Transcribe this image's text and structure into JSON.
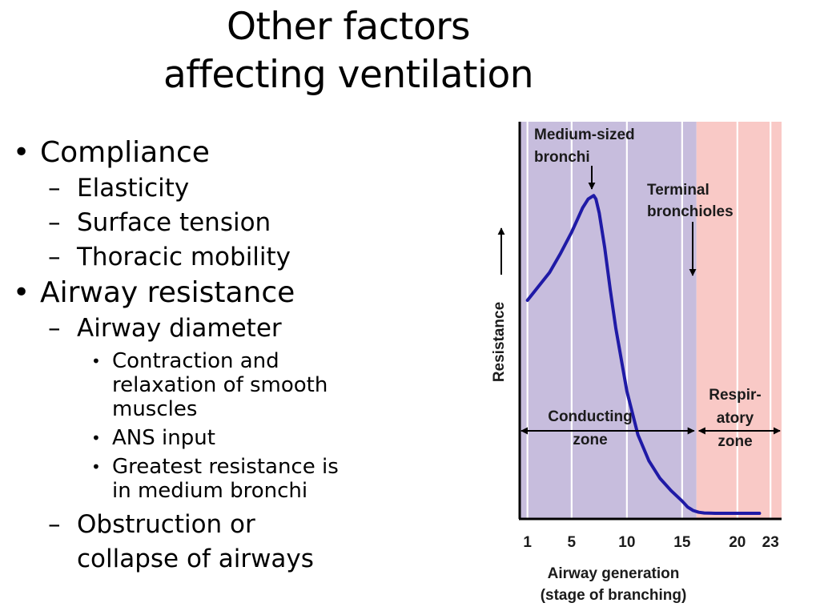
{
  "slide": {
    "title_line1": "Other factors",
    "title_line2": "affecting ventilation"
  },
  "bullets": {
    "compliance": {
      "label": "Compliance",
      "items": [
        "Elasticity",
        "Surface tension",
        "Thoracic mobility"
      ]
    },
    "airway_resistance": {
      "label": "Airway resistance",
      "diameter": {
        "label": "Airway diameter",
        "items": [
          [
            "Contraction and",
            "relaxation of smooth",
            "muscles"
          ],
          [
            "ANS input"
          ],
          [
            "Greatest resistance is",
            "in medium bronchi"
          ]
        ]
      },
      "obstruction": [
        "Obstruction or",
        "collapse of airways"
      ]
    }
  },
  "colors": {
    "conducting_zone": "#c7bddd",
    "respiratory_zone": "#f9c9c6",
    "curve": "#1f1aa6",
    "grid": "#ffffff",
    "axis": "#000000"
  },
  "chart_data": {
    "type": "line",
    "xlabel_line1": "Airway generation",
    "xlabel_line2": "(stage of branching)",
    "ylabel": "Resistance",
    "x_ticks": [
      1,
      5,
      10,
      15,
      20,
      23
    ],
    "xlim": [
      0.3,
      24
    ],
    "ylim": [
      0,
      1
    ],
    "grid": true,
    "series": [
      {
        "x": [
          1,
          2,
          3,
          4,
          5,
          5.5,
          6,
          6.5,
          7,
          7.2,
          7.5,
          8,
          8.5,
          9,
          10,
          11,
          12,
          13,
          14,
          15,
          15.5,
          16,
          16.5,
          17,
          18,
          20,
          22
        ],
        "y": [
          0.61,
          0.65,
          0.69,
          0.745,
          0.805,
          0.84,
          0.875,
          0.9,
          0.91,
          0.9,
          0.86,
          0.76,
          0.64,
          0.53,
          0.35,
          0.225,
          0.15,
          0.1,
          0.065,
          0.035,
          0.018,
          0.008,
          0.003,
          0.001,
          0,
          0,
          0
        ]
      }
    ],
    "zones": [
      {
        "name_lines": [
          "Conducting",
          "zone"
        ],
        "x_range": [
          0.3,
          16.3
        ]
      },
      {
        "name_lines": [
          "Respir-",
          "atory",
          "zone"
        ],
        "x_range": [
          16.3,
          24
        ]
      }
    ],
    "annotations": [
      {
        "text_lines": [
          "Medium-sized",
          "bronchi"
        ],
        "x": 6.3,
        "y": 0.93
      },
      {
        "text_lines": [
          "Terminal",
          "bronchioles"
        ],
        "x": 16.2,
        "y": 0.67
      }
    ]
  }
}
